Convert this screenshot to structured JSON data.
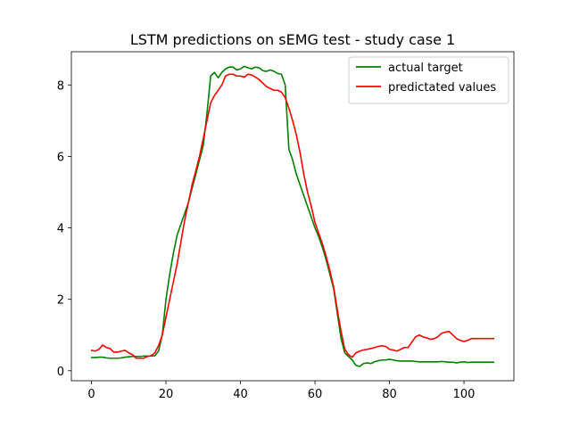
{
  "chart_data": {
    "type": "line",
    "title": "LSTM predictions on sEMG test - study case 1",
    "xlabel": "",
    "ylabel": "",
    "xlim": [
      -5.4,
      113.4
    ],
    "ylim": [
      -0.28,
      8.93
    ],
    "xticks": [
      0,
      20,
      40,
      60,
      80,
      100
    ],
    "yticks": [
      0,
      2,
      4,
      6,
      8
    ],
    "grid": false,
    "legend_position": "top-right",
    "series": [
      {
        "name": "actual target",
        "color": "#008000",
        "x": [
          0,
          1,
          2,
          3,
          4,
          5,
          6,
          7,
          8,
          9,
          10,
          11,
          12,
          13,
          14,
          15,
          16,
          17,
          18,
          19,
          20,
          21,
          22,
          23,
          24,
          25,
          26,
          27,
          28,
          29,
          30,
          31,
          32,
          33,
          34,
          35,
          36,
          37,
          38,
          39,
          40,
          41,
          42,
          43,
          44,
          45,
          46,
          47,
          48,
          49,
          50,
          51,
          52,
          53,
          54,
          55,
          56,
          57,
          58,
          59,
          60,
          61,
          62,
          63,
          64,
          65,
          66,
          67,
          68,
          69,
          70,
          71,
          72,
          73,
          74,
          75,
          76,
          77,
          78,
          79,
          80,
          81,
          82,
          83,
          84,
          85,
          86,
          87,
          88,
          89,
          90,
          91,
          92,
          93,
          94,
          95,
          96,
          97,
          98,
          99,
          100,
          101,
          102,
          103,
          104,
          105,
          106,
          107,
          108
        ],
        "values": [
          0.37,
          0.37,
          0.38,
          0.38,
          0.36,
          0.35,
          0.35,
          0.35,
          0.36,
          0.38,
          0.39,
          0.4,
          0.4,
          0.4,
          0.41,
          0.41,
          0.41,
          0.42,
          0.55,
          1.0,
          2.0,
          2.7,
          3.3,
          3.8,
          4.1,
          4.4,
          4.7,
          5.1,
          5.5,
          5.9,
          6.3,
          7.2,
          8.25,
          8.35,
          8.2,
          8.35,
          8.45,
          8.5,
          8.5,
          8.42,
          8.45,
          8.52,
          8.48,
          8.45,
          8.5,
          8.48,
          8.4,
          8.38,
          8.42,
          8.38,
          8.32,
          8.3,
          8.0,
          6.2,
          5.9,
          5.5,
          5.2,
          4.9,
          4.6,
          4.3,
          4.0,
          3.75,
          3.45,
          3.1,
          2.7,
          2.3,
          1.6,
          0.9,
          0.5,
          0.4,
          0.3,
          0.15,
          0.12,
          0.2,
          0.22,
          0.2,
          0.25,
          0.28,
          0.3,
          0.3,
          0.32,
          0.3,
          0.28,
          0.27,
          0.27,
          0.27,
          0.27,
          0.26,
          0.25,
          0.25,
          0.25,
          0.25,
          0.25,
          0.25,
          0.26,
          0.25,
          0.24,
          0.24,
          0.22,
          0.24,
          0.25,
          0.23,
          0.24,
          0.24,
          0.24,
          0.24,
          0.24,
          0.24,
          0.24
        ]
      },
      {
        "name": "predictated values",
        "color": "#ff0000",
        "x": [
          0,
          1,
          2,
          3,
          4,
          5,
          6,
          7,
          8,
          9,
          10,
          11,
          12,
          13,
          14,
          15,
          16,
          17,
          18,
          19,
          20,
          21,
          22,
          23,
          24,
          25,
          26,
          27,
          28,
          29,
          30,
          31,
          32,
          33,
          34,
          35,
          36,
          37,
          38,
          39,
          40,
          41,
          42,
          43,
          44,
          45,
          46,
          47,
          48,
          49,
          50,
          51,
          52,
          53,
          54,
          55,
          56,
          57,
          58,
          59,
          60,
          61,
          62,
          63,
          64,
          65,
          66,
          67,
          68,
          69,
          70,
          71,
          72,
          73,
          74,
          75,
          76,
          77,
          78,
          79,
          80,
          81,
          82,
          83,
          84,
          85,
          86,
          87,
          88,
          89,
          90,
          91,
          92,
          93,
          94,
          95,
          96,
          97,
          98,
          99,
          100,
          101,
          102,
          103,
          104,
          105,
          106,
          107,
          108
        ],
        "values": [
          0.57,
          0.55,
          0.6,
          0.72,
          0.65,
          0.62,
          0.52,
          0.52,
          0.55,
          0.57,
          0.5,
          0.45,
          0.35,
          0.35,
          0.35,
          0.4,
          0.42,
          0.5,
          0.7,
          1.0,
          1.5,
          2.0,
          2.5,
          3.0,
          3.6,
          4.2,
          4.7,
          5.2,
          5.6,
          6.0,
          6.5,
          7.0,
          7.5,
          7.7,
          7.85,
          8.0,
          8.25,
          8.3,
          8.3,
          8.25,
          8.25,
          8.22,
          8.3,
          8.28,
          8.22,
          8.15,
          8.05,
          7.95,
          7.9,
          7.85,
          7.85,
          7.8,
          7.65,
          7.35,
          7.0,
          6.6,
          6.1,
          5.5,
          5.0,
          4.6,
          4.15,
          3.85,
          3.55,
          3.2,
          2.8,
          2.35,
          1.7,
          1.1,
          0.6,
          0.45,
          0.38,
          0.5,
          0.55,
          0.58,
          0.6,
          0.62,
          0.65,
          0.68,
          0.7,
          0.68,
          0.6,
          0.58,
          0.55,
          0.6,
          0.65,
          0.65,
          0.8,
          0.95,
          1.0,
          0.95,
          0.92,
          0.88,
          0.9,
          0.95,
          1.05,
          1.08,
          1.1,
          1.0,
          0.9,
          0.85,
          0.82,
          0.85,
          0.9,
          0.9,
          0.9,
          0.9,
          0.9,
          0.9,
          0.9
        ]
      }
    ]
  }
}
